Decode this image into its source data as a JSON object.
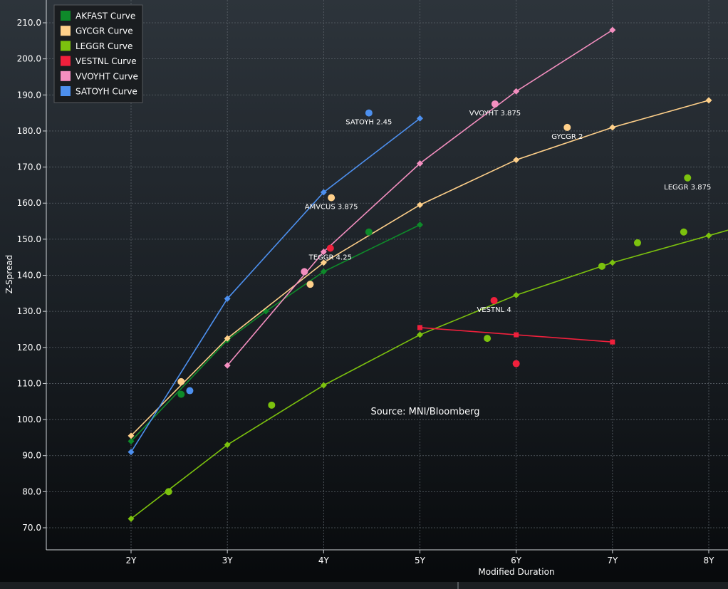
{
  "chart_data": {
    "type": "scatter",
    "xlabel": "Modified Duration",
    "ylabel": "Z-Spread",
    "xlim": [
      1.15,
      8.2
    ],
    "ylim": [
      64,
      215
    ],
    "x_ticks": [
      2,
      3,
      4,
      5,
      6,
      7,
      8
    ],
    "x_tick_labels": [
      "2Y",
      "3Y",
      "4Y",
      "5Y",
      "6Y",
      "7Y",
      "8Y"
    ],
    "y_ticks": [
      70,
      80,
      90,
      100,
      110,
      120,
      130,
      140,
      150,
      160,
      170,
      180,
      190,
      200,
      210
    ],
    "y_tick_labels": [
      "70.0",
      "80.0",
      "90.0",
      "100.0",
      "110.0",
      "120.0",
      "130.0",
      "140.0",
      "150.0",
      "160.0",
      "170.0",
      "180.0",
      "190.0",
      "200.0",
      "210.0"
    ],
    "grid": true,
    "legend_position": "top-left",
    "source_text": "Source: MNI/Bloomberg",
    "curves": [
      {
        "name": "AKFAST Curve",
        "color": "#0e8a2a",
        "marker": "diamond",
        "x": [
          2,
          3,
          3.4,
          4,
          5
        ],
        "y": [
          94,
          122,
          130,
          141,
          154
        ]
      },
      {
        "name": "GYCGR Curve",
        "color": "#ffd08a",
        "marker": "diamond",
        "x": [
          2,
          3,
          4,
          5,
          6,
          7,
          8
        ],
        "y": [
          95.5,
          122.5,
          143.5,
          159.5,
          172,
          181,
          188.5
        ]
      },
      {
        "name": "LEGGR Curve",
        "color": "#7cc20e",
        "marker": "diamond",
        "x": [
          2,
          3,
          4,
          5,
          6,
          7,
          8,
          8.2
        ],
        "y": [
          72.5,
          93,
          109.5,
          123.5,
          134.5,
          143.5,
          151,
          152.5
        ]
      },
      {
        "name": "VESTNL Curve",
        "color": "#f0203c",
        "marker": "square",
        "x": [
          5,
          6,
          7
        ],
        "y": [
          125.5,
          123.5,
          121.5
        ]
      },
      {
        "name": "VVOYHT Curve",
        "color": "#f48fc0",
        "marker": "diamond",
        "x": [
          3,
          4,
          5,
          6,
          7
        ],
        "y": [
          115,
          146.5,
          171,
          191,
          208
        ]
      },
      {
        "name": "SATOYH Curve",
        "color": "#4d90ef",
        "marker": "diamond",
        "x": [
          2,
          3,
          4,
          5
        ],
        "y": [
          91,
          133.5,
          163,
          183.5
        ]
      }
    ],
    "bonds": [
      {
        "series": "AKFAST Curve",
        "x": 2.52,
        "y": 107
      },
      {
        "series": "AKFAST Curve",
        "x": 4.47,
        "y": 152
      },
      {
        "series": "GYCGR Curve",
        "x": 2.52,
        "y": 110.5
      },
      {
        "series": "GYCGR Curve",
        "x": 3.86,
        "y": 137.5
      },
      {
        "series": "GYCGR Curve",
        "x": 4.08,
        "y": 161.5,
        "label": "AMVCUS 3.875"
      },
      {
        "series": "GYCGR Curve",
        "x": 6.53,
        "y": 181,
        "label": "GYCGR 2"
      },
      {
        "series": "LEGGR Curve",
        "x": 2.39,
        "y": 80
      },
      {
        "series": "LEGGR Curve",
        "x": 3.46,
        "y": 104
      },
      {
        "series": "LEGGR Curve",
        "x": 5.7,
        "y": 122.5
      },
      {
        "series": "LEGGR Curve",
        "x": 6.89,
        "y": 142.5
      },
      {
        "series": "LEGGR Curve",
        "x": 7.26,
        "y": 149
      },
      {
        "series": "LEGGR Curve",
        "x": 7.74,
        "y": 152
      },
      {
        "series": "LEGGR Curve",
        "x": 7.78,
        "y": 167,
        "label": "LEGGR 3.875"
      },
      {
        "series": "VESTNL Curve",
        "x": 4.07,
        "y": 147.5,
        "label": "TEGGR 4.25"
      },
      {
        "series": "VESTNL Curve",
        "x": 5.77,
        "y": 133,
        "label": "VESTNL 4"
      },
      {
        "series": "VESTNL Curve",
        "x": 6.0,
        "y": 115.5
      },
      {
        "series": "VVOYHT Curve",
        "x": 3.8,
        "y": 141
      },
      {
        "series": "VVOYHT Curve",
        "x": 5.78,
        "y": 187.5,
        "label": "VVOYHT 3.875"
      },
      {
        "series": "SATOYH Curve",
        "x": 2.61,
        "y": 108
      },
      {
        "series": "SATOYH Curve",
        "x": 4.47,
        "y": 185,
        "label": "SATOYH 2.45"
      }
    ]
  }
}
